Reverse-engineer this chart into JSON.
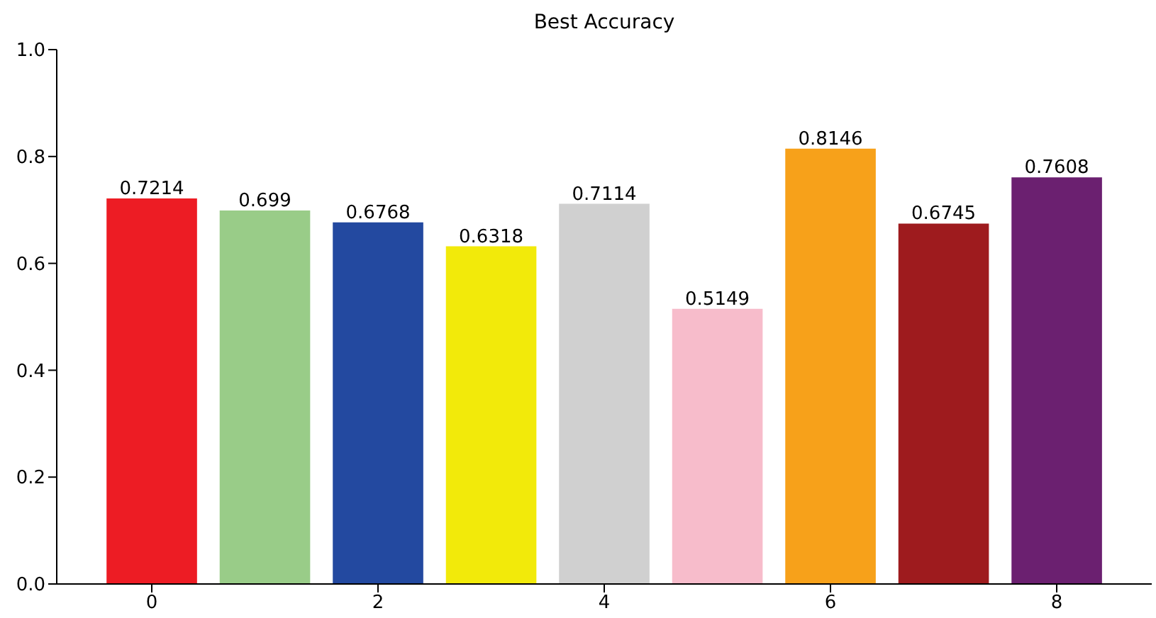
{
  "chart_data": {
    "type": "bar",
    "title": "Best Accuracy",
    "x": [
      0,
      1,
      2,
      3,
      4,
      5,
      6,
      7,
      8
    ],
    "values": [
      0.7214,
      0.699,
      0.6768,
      0.6318,
      0.7114,
      0.5149,
      0.8146,
      0.6745,
      0.7608
    ],
    "colors": [
      "#ed1c24",
      "#99cc88",
      "#2349a0",
      "#f2ea0a",
      "#d0d0d0",
      "#f7bccb",
      "#f7a11a",
      "#9e1b1e",
      "#6b2070"
    ],
    "xlim": [
      -0.84,
      8.84
    ],
    "xticks": [
      0,
      2,
      4,
      6,
      8
    ],
    "ylim": [
      0,
      1
    ],
    "yticks": [
      {
        "value": 0,
        "label": "0.0"
      },
      {
        "value": 0.2,
        "label": "0.2"
      },
      {
        "value": 0.4,
        "label": "0.4"
      },
      {
        "value": 0.6,
        "label": "0.6"
      },
      {
        "value": 0.8,
        "label": "0.8"
      },
      {
        "value": 1,
        "label": "1.0"
      }
    ],
    "data_labels": true,
    "grid": false,
    "legend": false
  }
}
